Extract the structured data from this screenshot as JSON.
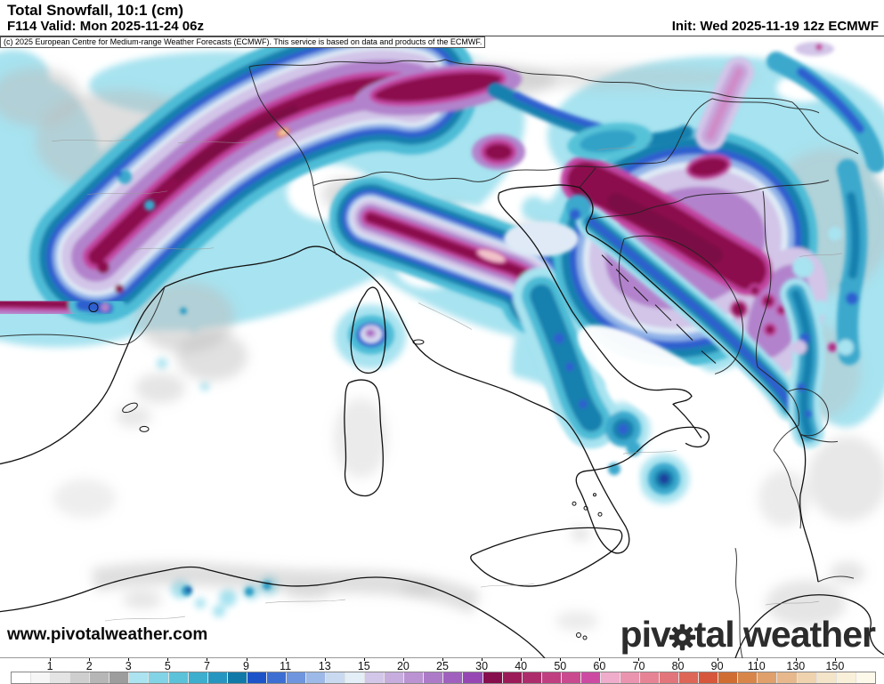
{
  "header": {
    "title": "Total Snowfall, 10:1 (cm)",
    "forecast_line": "F114 Valid: Mon 2025-11-24 06z",
    "init_line": "Init: Wed 2025-11-19 12z ECMWF"
  },
  "attribution": "(c) 2025 European Centre for Medium-range Weather Forecasts (ECMWF). This service is based on data and products of the ECMWF.",
  "watermark": "www.pivotalweather.com",
  "logo": {
    "prefix": "piv",
    "suffix": "tal weather"
  },
  "colorbar": {
    "unit": "cm",
    "labels": [
      "1",
      "2",
      "3",
      "5",
      "7",
      "9",
      "11",
      "13",
      "15",
      "20",
      "25",
      "30",
      "40",
      "50",
      "60",
      "70",
      "80",
      "90",
      "110",
      "130",
      "150"
    ],
    "colors": [
      "#ffffff",
      "#f6f6f6",
      "#e4e4e4",
      "#cecece",
      "#b6b6b6",
      "#9d9d9d",
      "#abe3f0",
      "#83d3e6",
      "#5cc2da",
      "#3daecd",
      "#2696c0",
      "#1179a8",
      "#1c53c8",
      "#3d6fd3",
      "#6e95de",
      "#9db9e8",
      "#c9daf0",
      "#e3eef6",
      "#d3c7e9",
      "#c7addd",
      "#bb93d2",
      "#ad7ac8",
      "#a061be",
      "#9747b4",
      "#870e4c",
      "#9a1b58",
      "#ad2d6c",
      "#bf3f80",
      "#c94a8e",
      "#cc4aa2",
      "#efaccb",
      "#eb94b0",
      "#e68495",
      "#e2757b",
      "#dd6657",
      "#d6573b",
      "#cf6d33",
      "#d8854a",
      "#dfa06b",
      "#e6b88c",
      "#eed3ae",
      "#f4e4c8",
      "#f9f0da",
      "#fcf8ea"
    ]
  },
  "map": {
    "palette": {
      "trace_gray": "#b6b6b6",
      "light_snow_cyan": "#a7e3f0",
      "teal": "#3aa8cc",
      "dark_teal": "#1880ae",
      "royal_blue": "#2e5ecf",
      "steel_blue": "#8fb2e8",
      "pale_blue": "#dfeaf6",
      "lavender": "#d2c5e8",
      "purple": "#b283cc",
      "magenta": "#c243a0",
      "dark_maroon": "#8c0e4e",
      "core_peach": "#f5d0a6",
      "core_pink": "#f1c3c9"
    }
  }
}
